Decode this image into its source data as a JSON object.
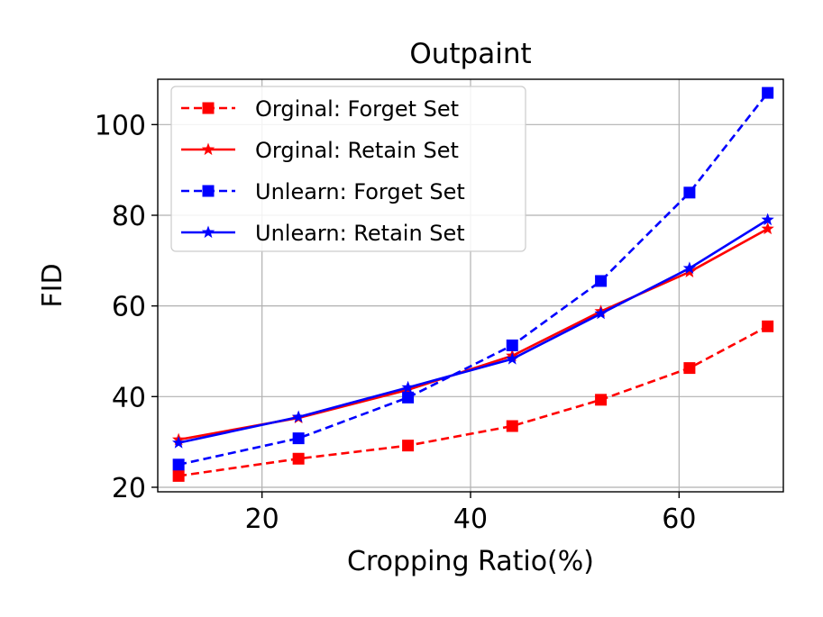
{
  "chart_data": {
    "type": "line",
    "title": "Outpaint",
    "xlabel": "Cropping Ratio(%)",
    "ylabel": "FID",
    "xlim": [
      10,
      70
    ],
    "ylim": [
      19,
      110
    ],
    "xticks": [
      20,
      40,
      60
    ],
    "yticks": [
      20,
      40,
      60,
      80,
      100
    ],
    "grid": true,
    "legend_position": "top-left",
    "series": [
      {
        "name": "Orginal: Forget Set",
        "color": "#ff0000",
        "linestyle": "dashed",
        "marker": "square",
        "x": [
          12,
          23.5,
          34,
          44,
          52.5,
          61,
          68.5
        ],
        "y": [
          22.5,
          26.3,
          29.2,
          33.5,
          39.3,
          46.3,
          55.5
        ]
      },
      {
        "name": "Orginal: Retain Set",
        "color": "#ff0000",
        "linestyle": "solid",
        "marker": "star",
        "x": [
          12,
          23.5,
          34,
          44,
          52.5,
          61,
          68.5
        ],
        "y": [
          30.5,
          35.3,
          41.5,
          49,
          58.8,
          67.5,
          77
        ]
      },
      {
        "name": "Unlearn: Forget Set",
        "color": "#0000ff",
        "linestyle": "dashed",
        "marker": "square",
        "x": [
          12,
          23.5,
          34,
          44,
          52.5,
          61,
          68.5
        ],
        "y": [
          25,
          30.8,
          39.8,
          51.3,
          65.5,
          85,
          107
        ]
      },
      {
        "name": "Unlearn: Retain Set",
        "color": "#0000ff",
        "linestyle": "solid",
        "marker": "star",
        "x": [
          12,
          23.5,
          34,
          44,
          52.5,
          61,
          68.5
        ],
        "y": [
          29.8,
          35.5,
          42,
          48.3,
          58.3,
          68.3,
          79
        ]
      }
    ]
  }
}
